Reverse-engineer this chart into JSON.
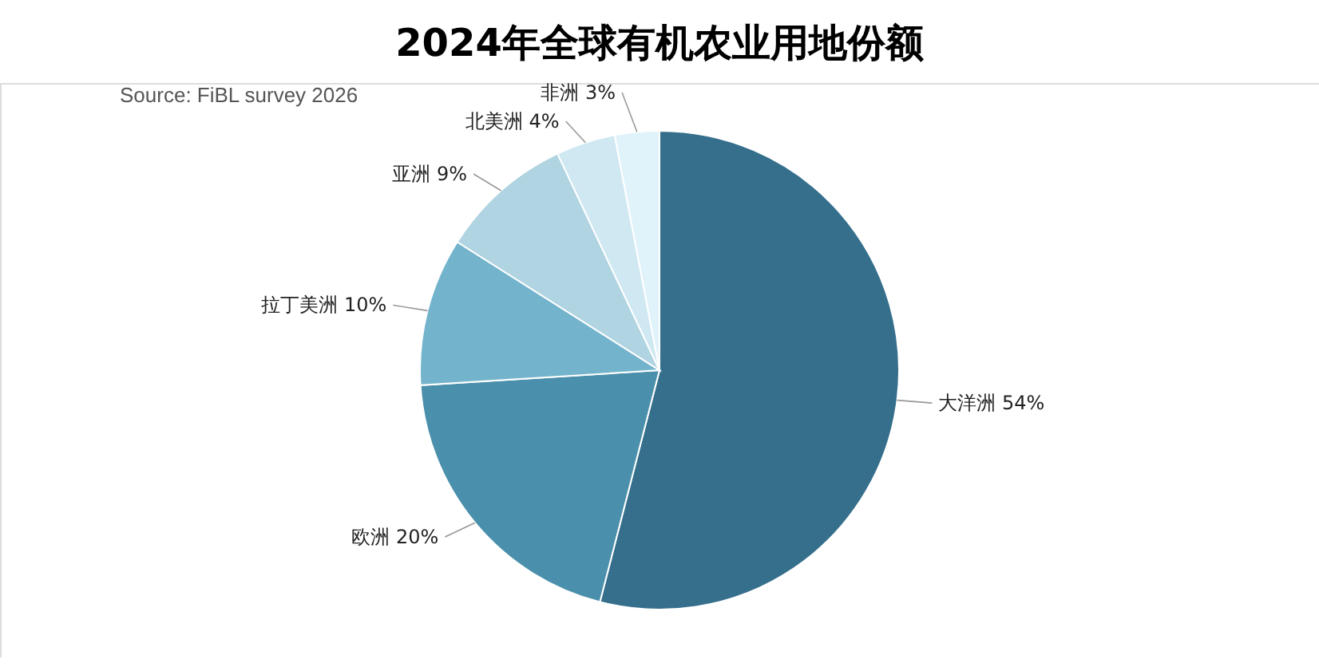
{
  "chart_data": {
    "type": "pie",
    "title": "2024年全球有机农业用地份额",
    "annotations": [
      "Source: FiBL survey 2026"
    ],
    "categories": [
      "大洋洲",
      "欧洲",
      "拉丁美洲",
      "亚洲",
      "北美洲",
      "非洲"
    ],
    "values": [
      54,
      20,
      10,
      9,
      4,
      3
    ],
    "value_labels": [
      "54%",
      "20%",
      "10%",
      "9%",
      "4%",
      "3%"
    ],
    "colors": [
      "#356f8c",
      "#4a8fab",
      "#73b4cc",
      "#b0d4e1",
      "#cfe8f2",
      "#e0f3fa"
    ]
  }
}
